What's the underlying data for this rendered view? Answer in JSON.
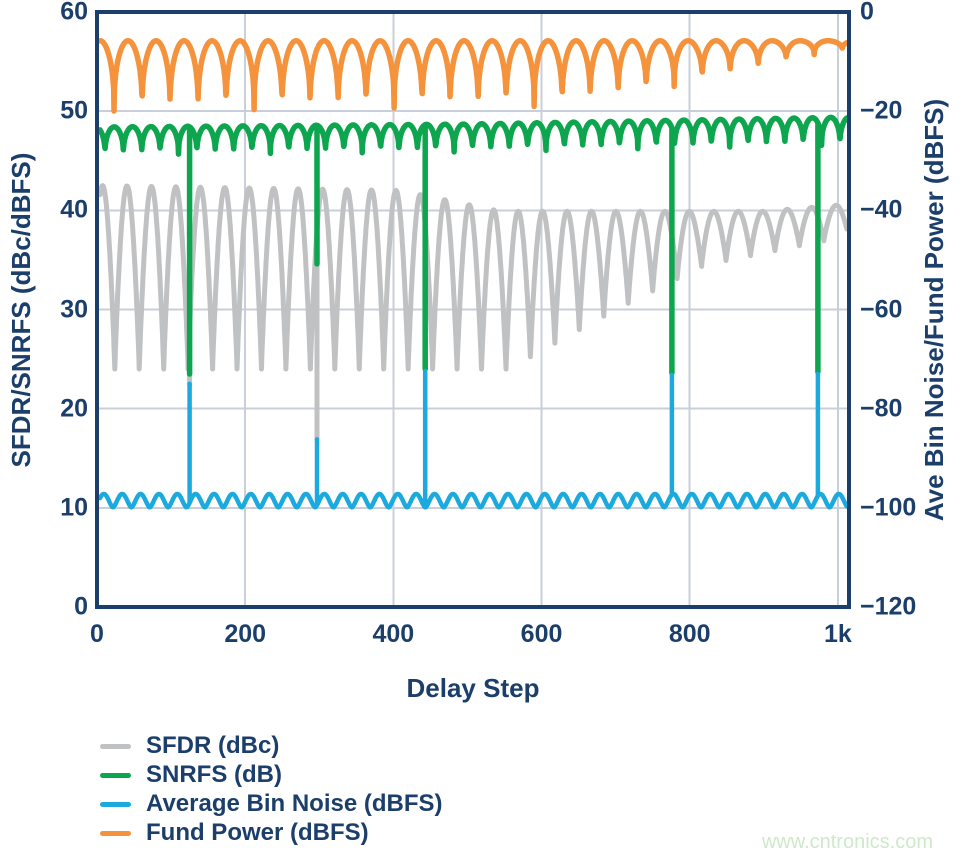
{
  "colors": {
    "navy": "#1b3e6b",
    "grid": "#c9cfda",
    "gray": "#c0c1c3",
    "green": "#0da64f",
    "blue": "#1ca9dd",
    "orange": "#f5923c",
    "watermark_green": "#cfe8c9",
    "background": "#ffffff"
  },
  "axes": {
    "x_title": "Delay Step",
    "y_left_title": "SFDR/SNRFS (dBc/dBFS)",
    "y_right_title": "Ave Bin Noise/Fund Power (dBFS)"
  },
  "legend": {
    "items": [
      {
        "label": "SFDR (dBc)",
        "color": "gray"
      },
      {
        "label": "SNRFS (dB)",
        "color": "green"
      },
      {
        "label": "Average Bin Noise (dBFS)",
        "color": "blue"
      },
      {
        "label": "Fund Power (dBFS)",
        "color": "orange"
      }
    ]
  },
  "watermark": "www.cntronics.com",
  "chart_data": {
    "type": "line",
    "title": "",
    "xlabel": "Delay Step",
    "ylabel_left": "SFDR/SNRFS (dBc/dBFS)",
    "ylabel_right": "Ave Bin Noise/Fund Power (dBFS)",
    "x_range": [
      0,
      1015
    ],
    "x_ticks": [
      {
        "v": 0,
        "label": "0"
      },
      {
        "v": 200,
        "label": "200"
      },
      {
        "v": 400,
        "label": "400"
      },
      {
        "v": 600,
        "label": "600"
      },
      {
        "v": 800,
        "label": "800"
      },
      {
        "v": 1000,
        "label": "1k"
      }
    ],
    "y_left": {
      "range": [
        0,
        60
      ],
      "ticks": [
        {
          "v": 60,
          "label": "60"
        },
        {
          "v": 50,
          "label": "50"
        },
        {
          "v": 40,
          "label": "40"
        },
        {
          "v": 30,
          "label": "30"
        },
        {
          "v": 20,
          "label": "20"
        },
        {
          "v": 10,
          "label": "10"
        },
        {
          "v": 0,
          "label": "0"
        }
      ]
    },
    "y_right": {
      "range": [
        -120,
        0
      ],
      "ticks": [
        {
          "v": 0,
          "label": "0"
        },
        {
          "v": -20,
          "label": "−20"
        },
        {
          "v": -40,
          "label": "−40"
        },
        {
          "v": -60,
          "label": "−60"
        },
        {
          "v": -80,
          "label": "−80"
        },
        {
          "v": -100,
          "label": "−100"
        },
        {
          "v": -120,
          "label": "−120"
        }
      ]
    },
    "grid": {
      "x": [
        200,
        400,
        600,
        800,
        1000
      ],
      "y_left": [
        10,
        20,
        30,
        40,
        50
      ]
    },
    "series": [
      {
        "name": "SFDR (dBc)",
        "axis": "left",
        "color": "gray",
        "width": 5,
        "x_start": 4,
        "x_end": 1012,
        "period": 33,
        "valley_x": 24,
        "power": 0.9,
        "max_env": [
          [
            0,
            42.5
          ],
          [
            410,
            42.0
          ],
          [
            545,
            39.9
          ],
          [
            900,
            39.9
          ],
          [
            1012,
            40.6
          ]
        ],
        "min_env": [
          [
            0,
            24.0
          ],
          [
            555,
            24.0
          ],
          [
            700,
            30.0
          ],
          [
            820,
            34.5
          ],
          [
            1012,
            37.4
          ]
        ],
        "spikes": [
          [
            125,
            22.4
          ],
          [
            297,
            16.9
          ]
        ],
        "summary": "Scallops between ~24 and ~42.5 dBc with ~33-step period; minima rise toward ~37 dBc after step ~560; downward glitches near steps 125 and 297"
      },
      {
        "name": "Fund Power (dBFS)",
        "axis": "right",
        "color": "orange",
        "width": 5.5,
        "x_start": 4,
        "x_end": 1012,
        "period": 37.8,
        "valley_x": 23,
        "power": 0.38,
        "max_env": [
          [
            0,
            -5.8
          ],
          [
            1012,
            -5.8
          ]
        ],
        "min_env": [
          [
            0,
            -20.0
          ],
          [
            620,
            -19.0
          ],
          [
            750,
            -16.0
          ],
          [
            870,
            -12.0
          ],
          [
            960,
            -8.8
          ],
          [
            1012,
            -7.5
          ]
        ],
        "spikes": [],
        "summary": "Peaks ~-6 dBFS with periodic dips to ~-20 dBFS; dip depth shrinks toward ~-8 dBFS near step 1000"
      },
      {
        "name": "SNRFS (dB)",
        "axis": "left",
        "color": "green",
        "width": 5.5,
        "x_start": 4,
        "x_end": 1012,
        "period": 24.8,
        "valley_x": 10.8,
        "power": 0.4,
        "max_env": [
          [
            0,
            48.4
          ],
          [
            500,
            48.7
          ],
          [
            1012,
            49.4
          ]
        ],
        "min_env": [
          [
            0,
            45.6
          ],
          [
            500,
            45.9
          ],
          [
            1012,
            46.6
          ]
        ],
        "spikes": [
          [
            125,
            23.5
          ],
          [
            297,
            34.6
          ],
          [
            443,
            24.0
          ],
          [
            776,
            23.6
          ],
          [
            973,
            23.7
          ]
        ],
        "summary": "Ripples between ~45.6 and ~49.4 dB; deep downward glitches at steps ~125, ~297, ~443, ~776, ~973"
      },
      {
        "name": "Average Bin Noise (dBFS)",
        "axis": "right",
        "color": "blue",
        "width": 4.5,
        "x_start": 4,
        "x_end": 1012,
        "period": 24.8,
        "valley_x": 21.6,
        "power": 1.6,
        "max_env": [
          [
            0,
            -97.2
          ],
          [
            1012,
            -97.2
          ]
        ],
        "min_env": [
          [
            0,
            -99.9
          ],
          [
            1012,
            -99.9
          ]
        ],
        "spikes": [
          [
            125,
            -75.0
          ],
          [
            297,
            -86.2
          ],
          [
            443,
            -72.4
          ],
          [
            776,
            -73.2
          ],
          [
            973,
            -73.0
          ]
        ],
        "summary": "Baseline ~-100 to -97 dBFS with small periodic bumps; upward glitches at steps ~125, ~297, ~443, ~776, ~973"
      }
    ]
  }
}
